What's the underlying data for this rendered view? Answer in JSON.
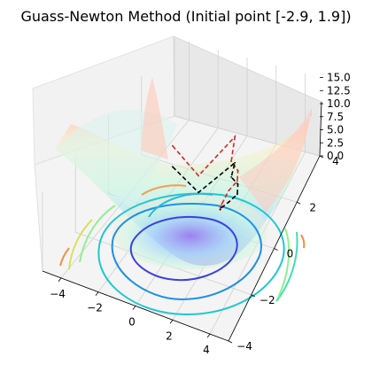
{
  "chart_data": {
    "type": "surface",
    "title": "Guass-Newton Method (Initial point [-2.9, 1.9])",
    "xlabel": "",
    "ylabel": "",
    "zlabel": "",
    "xlim": [
      -5,
      5
    ],
    "ylim": [
      -4,
      4
    ],
    "zlim": [
      0,
      15
    ],
    "x_ticks": [
      "−4",
      "−2",
      "0",
      "2",
      "4"
    ],
    "y_ticks": [
      "−4",
      "−2",
      "0",
      "2",
      "4"
    ],
    "z_ticks": [
      "0.0",
      "2.5",
      "5.0",
      "7.5",
      "10.0",
      "12.5",
      "15.0"
    ],
    "x_tick_values": [
      -4,
      -2,
      0,
      2,
      4
    ],
    "y_tick_values": [
      -4,
      -2,
      0,
      2,
      4
    ],
    "z_tick_values": [
      0,
      2.5,
      5,
      7.5,
      10,
      12.5,
      15
    ],
    "surface_colormap": "rainbow",
    "contour_colormap": "rainbow",
    "contour_levels": [
      1.5,
      3,
      4.5,
      6,
      8,
      10,
      12
    ],
    "grid": true,
    "paths": [
      {
        "color": "#d62728",
        "style": "dashed",
        "points": [
          [
            -2.9,
            1.9,
            4.0
          ],
          [
            -0.6,
            1.2,
            3.2
          ],
          [
            0.3,
            2.8,
            5.0
          ],
          [
            0.6,
            2.2,
            3.0
          ],
          [
            1.2,
            2.0,
            2.6
          ],
          [
            1.5,
            1.6,
            2.5
          ],
          [
            1.3,
            1.2,
            2.2
          ],
          [
            1.1,
            0.9,
            0.6
          ],
          [
            1.1,
            0.8,
            0.3
          ],
          [
            1.1,
            0.8,
            0.2
          ]
        ]
      },
      {
        "color": "#000000",
        "style": "dashed",
        "points": [
          [
            -2.9,
            1.9,
            0.0
          ],
          [
            -0.6,
            1.2,
            0.0
          ],
          [
            0.3,
            2.8,
            0.0
          ],
          [
            0.6,
            2.2,
            0.0
          ],
          [
            1.2,
            2.0,
            0.0
          ],
          [
            1.5,
            1.6,
            0.0
          ],
          [
            1.3,
            1.2,
            0.0
          ],
          [
            1.1,
            0.9,
            0.0
          ],
          [
            1.1,
            0.8,
            0.0
          ],
          [
            1.1,
            0.8,
            0.0
          ]
        ]
      }
    ]
  }
}
